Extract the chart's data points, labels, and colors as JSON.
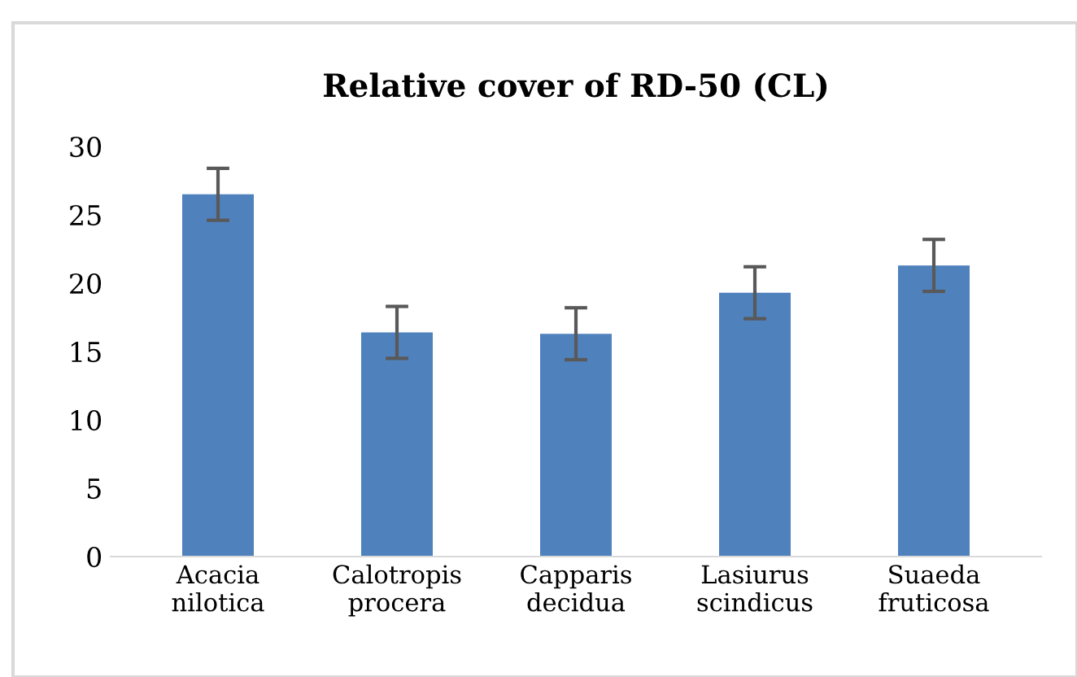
{
  "chart_data": {
    "type": "bar",
    "title": "Relative cover of RD-50 (CL)",
    "categories": [
      "Acacia\nnilotica",
      "Calotropis\nprocera",
      "Capparis\ndecidua",
      "Lasiurus\nscindicus",
      "Suaeda\nfruticosa"
    ],
    "values": [
      26.5,
      16.4,
      16.3,
      19.3,
      21.3
    ],
    "errors": [
      1.9,
      1.9,
      1.9,
      1.9,
      1.9
    ],
    "color": "#4f81bd",
    "ylim": [
      0,
      30
    ],
    "yticks": [
      0,
      5,
      10,
      15,
      20,
      25,
      30
    ],
    "grid": false
  }
}
